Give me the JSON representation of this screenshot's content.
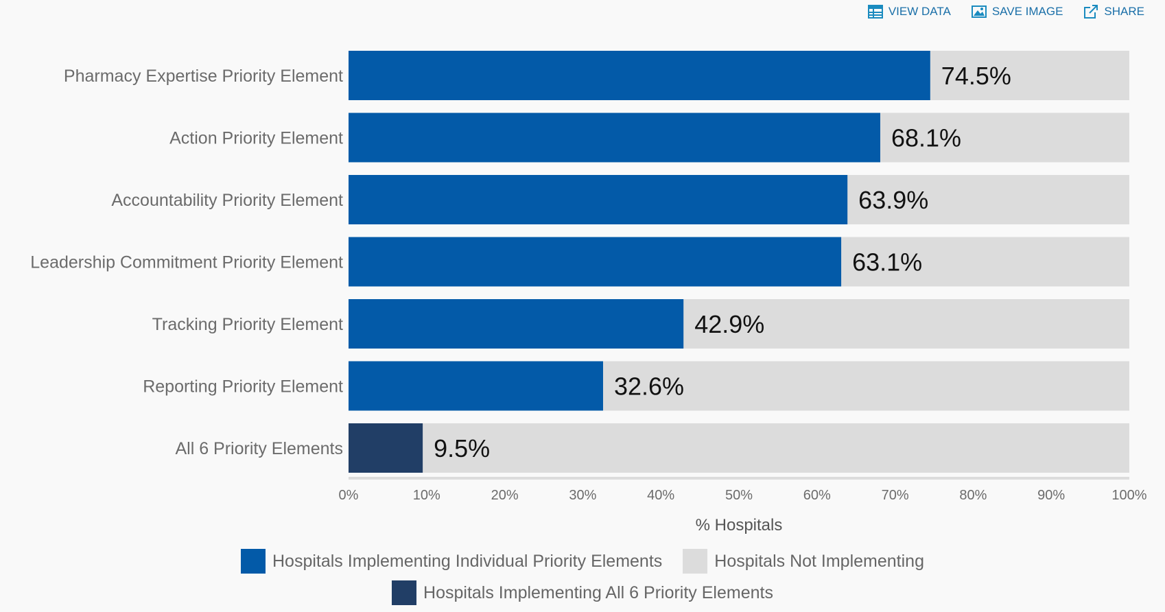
{
  "toolbar": {
    "view_data": "VIEW DATA",
    "save_image": "SAVE IMAGE",
    "share": "SHARE"
  },
  "colors": {
    "individual": "#035aa8",
    "all6": "#213e66",
    "not_implementing": "#dcdcdc",
    "icon": "#1a8bbf"
  },
  "chart_data": {
    "type": "bar",
    "orientation": "horizontal",
    "stacked": true,
    "categories": [
      "Pharmacy Expertise Priority Element",
      "Action Priority Element",
      "Accountability Priority Element",
      "Leadership Commitment Priority Element",
      "Tracking Priority Element",
      "Reporting Priority Element",
      "All 6 Priority Elements"
    ],
    "values": [
      74.5,
      68.1,
      63.9,
      63.1,
      42.9,
      32.6,
      9.5
    ],
    "value_labels": [
      "74.5%",
      "68.1%",
      "63.9%",
      "63.1%",
      "42.9%",
      "32.6%",
      "9.5%"
    ],
    "series": [
      {
        "name": "Hospitals Implementing Individual Priority Elements",
        "color": "#035aa8"
      },
      {
        "name": "Hospitals Not Implementing",
        "color": "#dcdcdc"
      },
      {
        "name": "Hospitals Implementing All 6 Priority Elements",
        "color": "#213e66"
      }
    ],
    "xlabel": "% Hospitals",
    "xlim": [
      0,
      100
    ],
    "xticks": [
      0,
      10,
      20,
      30,
      40,
      50,
      60,
      70,
      80,
      90,
      100
    ],
    "xtick_labels": [
      "0%",
      "10%",
      "20%",
      "30%",
      "40%",
      "50%",
      "60%",
      "70%",
      "80%",
      "90%",
      "100%"
    ],
    "grid": false,
    "legend_position": "bottom"
  }
}
